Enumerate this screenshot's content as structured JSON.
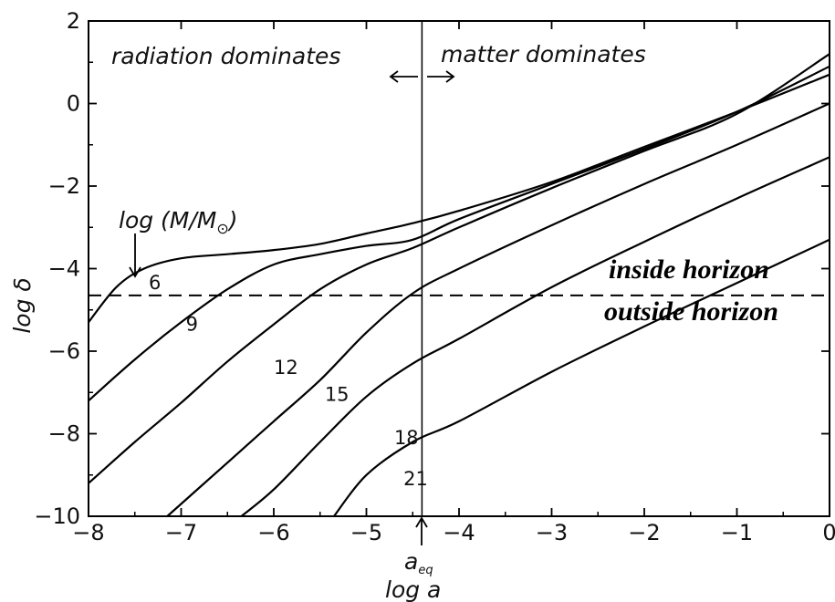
{
  "chart_data": {
    "type": "line",
    "xlabel": "log a",
    "ylabel": "log δ",
    "xlim": [
      -8,
      0
    ],
    "ylim": [
      -10,
      2
    ],
    "xticks": [
      -8,
      -7,
      -6,
      -5,
      -4,
      -3,
      -2,
      -1,
      0
    ],
    "yticks": [
      2,
      0,
      -2,
      -4,
      -6,
      -8,
      -10
    ],
    "xtick_labels": [
      "−8",
      "−7",
      "−6",
      "−5",
      "−4",
      "−3",
      "−2",
      "−1",
      "0"
    ],
    "ytick_labels": [
      "2",
      "0",
      "−2",
      "−4",
      "−6",
      "−8",
      "−10"
    ],
    "grid": false,
    "series": [
      {
        "name": "6",
        "label_at": [
          -7.35,
          -4.5
        ],
        "points": [
          [
            -8,
            -5.3
          ],
          [
            -7.7,
            -4.45
          ],
          [
            -7.4,
            -4.0
          ],
          [
            -7.0,
            -3.75
          ],
          [
            -6.5,
            -3.65
          ],
          [
            -6.0,
            -3.55
          ],
          [
            -5.5,
            -3.4
          ],
          [
            -5.0,
            -3.15
          ],
          [
            -4.5,
            -2.9
          ],
          [
            -4.0,
            -2.6
          ],
          [
            -3.0,
            -1.9
          ],
          [
            -2.0,
            -1.05
          ],
          [
            -1.0,
            -0.2
          ],
          [
            0.0,
            0.7
          ]
        ]
      },
      {
        "name": "9",
        "label_at": [
          -6.95,
          -5.5
        ],
        "points": [
          [
            -8,
            -7.2
          ],
          [
            -7.5,
            -6.2
          ],
          [
            -7.0,
            -5.3
          ],
          [
            -6.5,
            -4.5
          ],
          [
            -6.0,
            -3.9
          ],
          [
            -5.5,
            -3.65
          ],
          [
            -5.0,
            -3.45
          ],
          [
            -4.5,
            -3.3
          ],
          [
            -4.0,
            -2.8
          ],
          [
            -3.0,
            -1.95
          ],
          [
            -2.0,
            -1.1
          ],
          [
            -1.0,
            -0.2
          ],
          [
            0.0,
            0.9
          ]
        ]
      },
      {
        "name": "12",
        "label_at": [
          -6.0,
          -6.55
        ],
        "points": [
          [
            -8,
            -9.2
          ],
          [
            -7.5,
            -8.2
          ],
          [
            -7.0,
            -7.25
          ],
          [
            -6.5,
            -6.25
          ],
          [
            -6.0,
            -5.35
          ],
          [
            -5.5,
            -4.5
          ],
          [
            -5.0,
            -3.9
          ],
          [
            -4.5,
            -3.5
          ],
          [
            -4.0,
            -3.0
          ],
          [
            -3.0,
            -2.05
          ],
          [
            -2.0,
            -1.15
          ],
          [
            -1.0,
            -0.25
          ],
          [
            0.0,
            1.2
          ]
        ]
      },
      {
        "name": "15",
        "label_at": [
          -5.45,
          -7.2
        ],
        "points": [
          [
            -7.15,
            -10.0
          ],
          [
            -6.5,
            -8.7
          ],
          [
            -6.0,
            -7.7
          ],
          [
            -5.5,
            -6.7
          ],
          [
            -5.0,
            -5.55
          ],
          [
            -4.5,
            -4.6
          ],
          [
            -4.0,
            -4.0
          ],
          [
            -3.0,
            -2.95
          ],
          [
            -2.0,
            -1.95
          ],
          [
            -1.0,
            -1.0
          ],
          [
            0.0,
            0.0
          ]
        ]
      },
      {
        "name": "18",
        "label_at": [
          -4.7,
          -8.25
        ],
        "points": [
          [
            -6.35,
            -10.0
          ],
          [
            -6.0,
            -9.35
          ],
          [
            -5.5,
            -8.2
          ],
          [
            -5.0,
            -7.1
          ],
          [
            -4.5,
            -6.3
          ],
          [
            -4.0,
            -5.7
          ],
          [
            -3.0,
            -4.45
          ],
          [
            -2.0,
            -3.35
          ],
          [
            -1.0,
            -2.3
          ],
          [
            0.0,
            -1.3
          ]
        ]
      },
      {
        "name": "21",
        "label_at": [
          -4.6,
          -9.25
        ],
        "points": [
          [
            -5.35,
            -10.0
          ],
          [
            -5.0,
            -9.0
          ],
          [
            -4.5,
            -8.2
          ],
          [
            -4.0,
            -7.7
          ],
          [
            -3.0,
            -6.5
          ],
          [
            -2.0,
            -5.4
          ],
          [
            -1.0,
            -4.35
          ],
          [
            0.0,
            -3.3
          ]
        ]
      }
    ],
    "horizon_line": {
      "y": -4.65
    },
    "equality_line": {
      "x": -4.4,
      "label": "a_eq"
    },
    "annotations": {
      "radiation": "radiation dominates",
      "matter": "matter dominates",
      "mass_label": "log (M/M",
      "sun_symbol": "⊙",
      "inside": "inside horizon",
      "outside": "outside horizon",
      "aeq_main": "a",
      "aeq_sub": "eq"
    }
  }
}
